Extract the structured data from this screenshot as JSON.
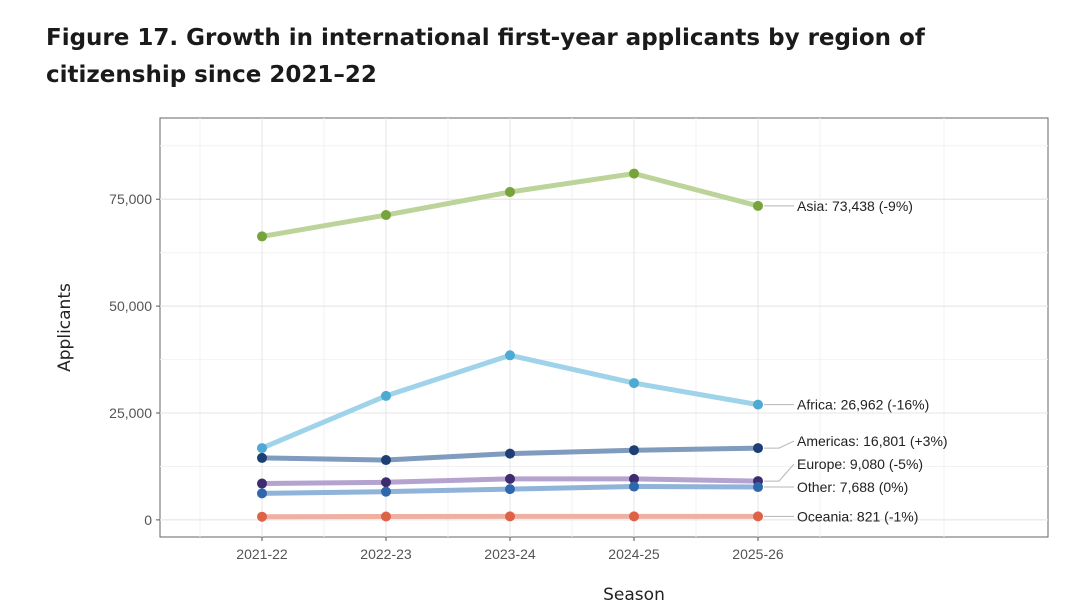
{
  "figure": {
    "title": "Figure 17. Growth in international first-year applicants by region of citizenship since 2021–22"
  },
  "chart_data": {
    "type": "line",
    "title": "Figure 17. Growth in international first-year applicants by region of citizenship since 2021–22",
    "xlabel": "Season",
    "ylabel": "Applicants",
    "categories": [
      "2021-22",
      "2022-23",
      "2023-24",
      "2024-25",
      "2025-26"
    ],
    "ylim": [
      -4000,
      94000
    ],
    "yticks": [
      0,
      25000,
      50000,
      75000
    ],
    "ytick_labels": [
      "0",
      "25,000",
      "50,000",
      "75,000"
    ],
    "grid": true,
    "legend": "direct labels at right end of lines",
    "series": [
      {
        "name": "Asia",
        "values": [
          66300,
          71300,
          76700,
          81000,
          73438
        ],
        "line_color": "#bcd39a",
        "point_color": "#76a33a",
        "label": "Asia: 73,438 (-9%)"
      },
      {
        "name": "Africa",
        "values": [
          16800,
          29000,
          38500,
          32000,
          26962
        ],
        "line_color": "#9ed3ea",
        "point_color": "#4ea9d3",
        "label": "Africa: 26,962 (-16%)"
      },
      {
        "name": "Americas",
        "values": [
          14500,
          14000,
          15500,
          16300,
          16801
        ],
        "line_color": "#7f9bbd",
        "point_color": "#1d3f73",
        "label": "Americas: 16,801 (+3%)"
      },
      {
        "name": "Europe",
        "values": [
          8500,
          8800,
          9600,
          9600,
          9080
        ],
        "line_color": "#b4a2cf",
        "point_color": "#3e2c6e",
        "label": "Europe: 9,080 (-5%)"
      },
      {
        "name": "Other",
        "values": [
          6200,
          6600,
          7200,
          7800,
          7688
        ],
        "line_color": "#8fb3d9",
        "point_color": "#2f67ad",
        "label": "Other: 7,688 (0%)"
      },
      {
        "name": "Oceania",
        "values": [
          750,
          800,
          820,
          830,
          821
        ],
        "line_color": "#eeb0a0",
        "point_color": "#de6246",
        "label": "Oceania: 821 (-1%)"
      }
    ]
  }
}
